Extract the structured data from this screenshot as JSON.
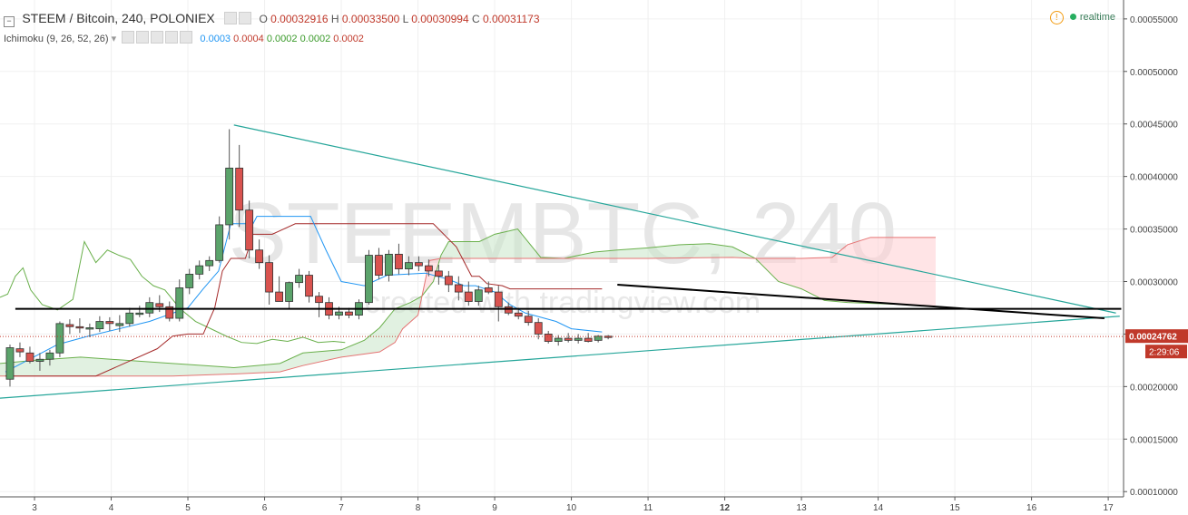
{
  "header": {
    "symbol": "STEEM / Bitcoin, 240, POLONIEX",
    "o_label": "O",
    "o_value": "0.00032916",
    "h_label": "H",
    "h_value": "0.00033500",
    "l_label": "L",
    "l_value": "0.00030994",
    "c_label": "C",
    "c_value": "0.00031173",
    "realtime": "realtime"
  },
  "indicator": {
    "name": "Ichimoku (9, 26, 52, 26)",
    "values": [
      "0.0003",
      "0.0004",
      "0.0002",
      "0.0002",
      "0.0002"
    ]
  },
  "watermark": {
    "symbol": "STEEMBTC, 240",
    "published": "created with tradingview.com"
  },
  "colors": {
    "up": "#5ba36b",
    "down": "#d9534f",
    "conversion": "#2196f3",
    "base": "#a52a2a",
    "lagging": "#6ab04c",
    "cloud_up": "#c8e6c9",
    "cloud_down": "#ffcdd2",
    "trend": "#26a69a",
    "price_line": "#c0392b"
  },
  "chart_data": {
    "type": "candlestick",
    "title": "STEEM / Bitcoin, 240, POLONIEX",
    "x_ticks": [
      "3",
      "4",
      "5",
      "6",
      "7",
      "8",
      "9",
      "10",
      "11",
      "12",
      "13",
      "14",
      "15",
      "16",
      "17"
    ],
    "x_range": [
      2.55,
      17.2
    ],
    "y_ticks": [
      "0.00010000",
      "0.00015000",
      "0.00020000",
      "0.00025000",
      "0.00030000",
      "0.00035000",
      "0.00040000",
      "0.00045000",
      "0.00050000",
      "0.00055000"
    ],
    "y_range": [
      9.5e-05,
      0.000568
    ],
    "last_price": "0.00024762",
    "countdown": "2:29:06",
    "candles": [
      {
        "x": 2.68,
        "o": 0.000207,
        "h": 0.00024,
        "l": 0.0002,
        "c": 0.000237
      },
      {
        "x": 2.81,
        "o": 0.000236,
        "h": 0.000242,
        "l": 0.000228,
        "c": 0.000233
      },
      {
        "x": 2.94,
        "o": 0.000232,
        "h": 0.000238,
        "l": 0.000222,
        "c": 0.000224
      },
      {
        "x": 3.07,
        "o": 0.000224,
        "h": 0.000232,
        "l": 0.000215,
        "c": 0.000226
      },
      {
        "x": 3.2,
        "o": 0.000226,
        "h": 0.000235,
        "l": 0.00022,
        "c": 0.000232
      },
      {
        "x": 3.33,
        "o": 0.000232,
        "h": 0.000262,
        "l": 0.000228,
        "c": 0.00026
      },
      {
        "x": 3.46,
        "o": 0.000259,
        "h": 0.000264,
        "l": 0.00025,
        "c": 0.000257
      },
      {
        "x": 3.59,
        "o": 0.000257,
        "h": 0.000265,
        "l": 0.000251,
        "c": 0.000256
      },
      {
        "x": 3.72,
        "o": 0.000255,
        "h": 0.00026,
        "l": 0.000247,
        "c": 0.000256
      },
      {
        "x": 3.85,
        "o": 0.000255,
        "h": 0.000267,
        "l": 0.000252,
        "c": 0.000262
      },
      {
        "x": 3.98,
        "o": 0.000262,
        "h": 0.000266,
        "l": 0.000253,
        "c": 0.00026
      },
      {
        "x": 4.11,
        "o": 0.000258,
        "h": 0.000268,
        "l": 0.000252,
        "c": 0.00026
      },
      {
        "x": 4.24,
        "o": 0.00026,
        "h": 0.000275,
        "l": 0.000257,
        "c": 0.00027
      },
      {
        "x": 4.37,
        "o": 0.00027,
        "h": 0.000277,
        "l": 0.000266,
        "c": 0.00027
      },
      {
        "x": 4.5,
        "o": 0.00027,
        "h": 0.000285,
        "l": 0.000266,
        "c": 0.00028
      },
      {
        "x": 4.63,
        "o": 0.000279,
        "h": 0.000287,
        "l": 0.000271,
        "c": 0.000276
      },
      {
        "x": 4.76,
        "o": 0.000276,
        "h": 0.000281,
        "l": 0.000262,
        "c": 0.000265
      },
      {
        "x": 4.89,
        "o": 0.000265,
        "h": 0.000302,
        "l": 0.000262,
        "c": 0.000294
      },
      {
        "x": 5.02,
        "o": 0.000294,
        "h": 0.000312,
        "l": 0.000288,
        "c": 0.000307
      },
      {
        "x": 5.15,
        "o": 0.000307,
        "h": 0.00032,
        "l": 0.000302,
        "c": 0.000315
      },
      {
        "x": 5.28,
        "o": 0.000315,
        "h": 0.000324,
        "l": 0.00031,
        "c": 0.00032
      },
      {
        "x": 5.41,
        "o": 0.00032,
        "h": 0.000362,
        "l": 0.000318,
        "c": 0.000354
      },
      {
        "x": 5.54,
        "o": 0.000354,
        "h": 0.000445,
        "l": 0.00034,
        "c": 0.000408
      },
      {
        "x": 5.67,
        "o": 0.000408,
        "h": 0.00043,
        "l": 0.000352,
        "c": 0.000368
      },
      {
        "x": 5.8,
        "o": 0.000368,
        "h": 0.000377,
        "l": 0.000322,
        "c": 0.00033
      },
      {
        "x": 5.93,
        "o": 0.00033,
        "h": 0.00034,
        "l": 0.000312,
        "c": 0.000318
      },
      {
        "x": 6.06,
        "o": 0.000318,
        "h": 0.000325,
        "l": 0.000278,
        "c": 0.00029
      },
      {
        "x": 6.19,
        "o": 0.00029,
        "h": 0.000305,
        "l": 0.000283,
        "c": 0.000281
      },
      {
        "x": 6.32,
        "o": 0.000281,
        "h": 0.0003,
        "l": 0.000274,
        "c": 0.000299
      },
      {
        "x": 6.45,
        "o": 0.000299,
        "h": 0.000312,
        "l": 0.000294,
        "c": 0.000306
      },
      {
        "x": 6.58,
        "o": 0.000306,
        "h": 0.00031,
        "l": 0.00028,
        "c": 0.000286
      },
      {
        "x": 6.71,
        "o": 0.000286,
        "h": 0.00029,
        "l": 0.000266,
        "c": 0.00028
      },
      {
        "x": 6.84,
        "o": 0.00028,
        "h": 0.000285,
        "l": 0.000264,
        "c": 0.000268
      },
      {
        "x": 6.97,
        "o": 0.000268,
        "h": 0.000276,
        "l": 0.000264,
        "c": 0.000271
      },
      {
        "x": 7.1,
        "o": 0.000271,
        "h": 0.000275,
        "l": 0.000265,
        "c": 0.000268
      },
      {
        "x": 7.23,
        "o": 0.000268,
        "h": 0.000283,
        "l": 0.000264,
        "c": 0.00028
      },
      {
        "x": 7.36,
        "o": 0.00028,
        "h": 0.00033,
        "l": 0.000278,
        "c": 0.000325
      },
      {
        "x": 7.49,
        "o": 0.000325,
        "h": 0.000332,
        "l": 0.000302,
        "c": 0.000306
      },
      {
        "x": 7.62,
        "o": 0.000306,
        "h": 0.00033,
        "l": 0.0003,
        "c": 0.000326
      },
      {
        "x": 7.75,
        "o": 0.000326,
        "h": 0.000336,
        "l": 0.000307,
        "c": 0.000312
      },
      {
        "x": 7.88,
        "o": 0.000312,
        "h": 0.000324,
        "l": 0.000306,
        "c": 0.000318
      },
      {
        "x": 8.01,
        "o": 0.000318,
        "h": 0.000324,
        "l": 0.00031,
        "c": 0.000315
      },
      {
        "x": 8.14,
        "o": 0.000315,
        "h": 0.000321,
        "l": 0.000305,
        "c": 0.00031
      },
      {
        "x": 8.27,
        "o": 0.00031,
        "h": 0.000316,
        "l": 0.000297,
        "c": 0.000305
      },
      {
        "x": 8.4,
        "o": 0.000305,
        "h": 0.00031,
        "l": 0.00029,
        "c": 0.000297
      },
      {
        "x": 8.53,
        "o": 0.000297,
        "h": 0.000305,
        "l": 0.000282,
        "c": 0.00029
      },
      {
        "x": 8.66,
        "o": 0.00029,
        "h": 0.0003,
        "l": 0.000277,
        "c": 0.000281
      },
      {
        "x": 8.79,
        "o": 0.000281,
        "h": 0.000296,
        "l": 0.000277,
        "c": 0.000292
      },
      {
        "x": 8.92,
        "o": 0.000294,
        "h": 0.0003,
        "l": 0.000288,
        "c": 0.00029
      },
      {
        "x": 9.05,
        "o": 0.00029,
        "h": 0.000296,
        "l": 0.000262,
        "c": 0.000276
      },
      {
        "x": 9.18,
        "o": 0.000276,
        "h": 0.00028,
        "l": 0.000268,
        "c": 0.00027
      },
      {
        "x": 9.31,
        "o": 0.00027,
        "h": 0.000275,
        "l": 0.000264,
        "c": 0.000267
      },
      {
        "x": 9.44,
        "o": 0.000267,
        "h": 0.000272,
        "l": 0.000258,
        "c": 0.000261
      },
      {
        "x": 9.57,
        "o": 0.000261,
        "h": 0.000265,
        "l": 0.000245,
        "c": 0.00025
      },
      {
        "x": 9.7,
        "o": 0.00025,
        "h": 0.000253,
        "l": 0.000241,
        "c": 0.000243
      },
      {
        "x": 9.83,
        "o": 0.000243,
        "h": 0.000249,
        "l": 0.000239,
        "c": 0.000246
      },
      {
        "x": 9.96,
        "o": 0.000246,
        "h": 0.000251,
        "l": 0.000242,
        "c": 0.000244
      },
      {
        "x": 10.09,
        "o": 0.000244,
        "h": 0.00025,
        "l": 0.000241,
        "c": 0.000246
      },
      {
        "x": 10.22,
        "o": 0.000246,
        "h": 0.000251,
        "l": 0.000242,
        "c": 0.000243
      },
      {
        "x": 10.35,
        "o": 0.000244,
        "h": 0.000249,
        "l": 0.000242,
        "c": 0.000248
      },
      {
        "x": 10.48,
        "o": 0.000248,
        "h": 0.000249,
        "l": 0.000245,
        "c": 0.000247
      }
    ],
    "conversion_line": [
      [
        2.62,
        0.000214
      ],
      [
        3.3,
        0.00024
      ],
      [
        3.7,
        0.000248
      ],
      [
        4.5,
        0.000262
      ],
      [
        5.0,
        0.000275
      ],
      [
        5.2,
        0.000293
      ],
      [
        5.4,
        0.00031
      ],
      [
        5.56,
        0.000355
      ],
      [
        5.85,
        0.000355
      ],
      [
        5.9,
        0.000362
      ],
      [
        6.6,
        0.000362
      ],
      [
        6.8,
        0.00033
      ],
      [
        7.0,
        0.0003
      ],
      [
        7.3,
        0.000296
      ],
      [
        7.6,
        0.000306
      ],
      [
        8.1,
        0.000308
      ],
      [
        8.4,
        0.000302
      ],
      [
        8.6,
        0.000296
      ],
      [
        8.75,
        0.000296
      ],
      [
        9.0,
        0.00029
      ],
      [
        9.2,
        0.000278
      ],
      [
        9.4,
        0.00027
      ],
      [
        9.8,
        0.000262
      ],
      [
        10.0,
        0.000255
      ],
      [
        10.4,
        0.000252
      ]
    ],
    "base_line": [
      [
        2.62,
        0.00021
      ],
      [
        3.8,
        0.00021
      ],
      [
        4.6,
        0.000236
      ],
      [
        4.8,
        0.000248
      ],
      [
        5.0,
        0.00025
      ],
      [
        5.2,
        0.00025
      ],
      [
        5.35,
        0.000275
      ],
      [
        5.45,
        0.00031
      ],
      [
        5.56,
        0.000322
      ],
      [
        5.75,
        0.000322
      ],
      [
        5.85,
        0.000345
      ],
      [
        6.1,
        0.000345
      ],
      [
        6.4,
        0.000355
      ],
      [
        8.2,
        0.000355
      ],
      [
        8.5,
        0.000333
      ],
      [
        8.7,
        0.000305
      ],
      [
        8.8,
        0.000305
      ],
      [
        8.9,
        0.000298
      ],
      [
        9.1,
        0.000296
      ],
      [
        9.2,
        0.000293
      ],
      [
        9.6,
        0.000293
      ],
      [
        10.4,
        0.000293
      ]
    ],
    "lagging_span": [
      [
        2.55,
        0.000285
      ],
      [
        2.65,
        0.000288
      ],
      [
        2.75,
        0.000305
      ],
      [
        2.85,
        0.000313
      ],
      [
        2.95,
        0.000292
      ],
      [
        3.1,
        0.000278
      ],
      [
        3.3,
        0.000273
      ],
      [
        3.5,
        0.000283
      ],
      [
        3.65,
        0.000338
      ],
      [
        3.8,
        0.000318
      ],
      [
        3.95,
        0.00033
      ],
      [
        4.1,
        0.000325
      ],
      [
        4.25,
        0.000321
      ],
      [
        4.4,
        0.000305
      ],
      [
        4.55,
        0.000296
      ],
      [
        4.7,
        0.000292
      ],
      [
        4.9,
        0.000274
      ],
      [
        5.1,
        0.000262
      ],
      [
        5.3,
        0.000255
      ],
      [
        5.5,
        0.000248
      ],
      [
        5.7,
        0.000242
      ],
      [
        5.9,
        0.000241
      ],
      [
        6.1,
        0.000245
      ],
      [
        6.3,
        0.000243
      ],
      [
        6.5,
        0.000247
      ],
      [
        6.7,
        0.000242
      ],
      [
        6.9,
        0.000243
      ],
      [
        7.05,
        0.000242
      ]
    ],
    "span_a": [
      [
        2.55,
        0.000222
      ],
      [
        3.0,
        0.000225
      ],
      [
        3.6,
        0.000228
      ],
      [
        4.2,
        0.000225
      ],
      [
        4.8,
        0.000222
      ],
      [
        5.2,
        0.00022
      ],
      [
        5.6,
        0.000218
      ],
      [
        6.2,
        0.000222
      ],
      [
        6.5,
        0.000232
      ],
      [
        7.0,
        0.000235
      ],
      [
        7.3,
        0.000244
      ],
      [
        7.5,
        0.000256
      ],
      [
        7.7,
        0.000274
      ],
      [
        7.9,
        0.00028
      ],
      [
        8.05,
        0.000286
      ],
      [
        8.2,
        0.0003
      ],
      [
        8.3,
        0.000325
      ],
      [
        8.4,
        0.000338
      ],
      [
        8.8,
        0.000338
      ],
      [
        9.0,
        0.000345
      ],
      [
        9.3,
        0.00035
      ],
      [
        9.6,
        0.000323
      ],
      [
        9.9,
        0.000322
      ],
      [
        10.3,
        0.000328
      ],
      [
        10.6,
        0.00033
      ],
      [
        11.0,
        0.000332
      ],
      [
        11.4,
        0.000335
      ],
      [
        11.8,
        0.000336
      ],
      [
        12.1,
        0.000333
      ],
      [
        12.4,
        0.000322
      ],
      [
        12.7,
        0.0003
      ],
      [
        13.0,
        0.000293
      ],
      [
        13.3,
        0.000282
      ],
      [
        13.6,
        0.00028
      ],
      [
        14.0,
        0.000279
      ],
      [
        14.4,
        0.000278
      ],
      [
        14.75,
        0.000276
      ]
    ],
    "span_b": [
      [
        2.55,
        0.00021
      ],
      [
        4.8,
        0.00021
      ],
      [
        5.6,
        0.000212
      ],
      [
        6.2,
        0.000214
      ],
      [
        6.5,
        0.00022
      ],
      [
        7.0,
        0.000228
      ],
      [
        7.5,
        0.000233
      ],
      [
        7.7,
        0.000242
      ],
      [
        7.8,
        0.000255
      ],
      [
        8.0,
        0.000268
      ],
      [
        8.15,
        0.00032
      ],
      [
        8.3,
        0.000322
      ],
      [
        10.6,
        0.000322
      ],
      [
        11.0,
        0.000322
      ],
      [
        12.1,
        0.000323
      ],
      [
        12.4,
        0.000322
      ],
      [
        13.0,
        0.000322
      ],
      [
        13.4,
        0.000323
      ],
      [
        13.6,
        0.000335
      ],
      [
        13.9,
        0.000342
      ],
      [
        14.75,
        0.000342
      ]
    ],
    "trendlines": [
      {
        "name": "upper-trendline",
        "from": [
          5.6,
          0.000449
        ],
        "to": [
          17.1,
          0.00027
        ],
        "color": "#26a69a"
      },
      {
        "name": "lower-trendline",
        "from": [
          2.55,
          0.000189
        ],
        "to": [
          17.15,
          0.000267
        ],
        "color": "#26a69a"
      },
      {
        "name": "horizontal-support",
        "from": [
          2.75,
          0.000274
        ],
        "to": [
          17.17,
          0.000274
        ],
        "color": "#000000"
      },
      {
        "name": "descending-resistance",
        "from": [
          10.6,
          0.000297
        ],
        "to": [
          16.95,
          0.000265
        ],
        "color": "#000000"
      }
    ]
  }
}
